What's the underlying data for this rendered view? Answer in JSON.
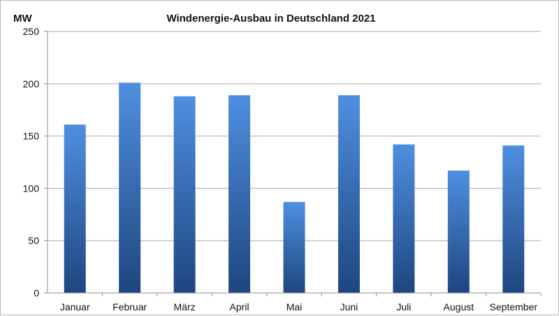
{
  "chart_data": {
    "type": "bar",
    "title": "Windenergie-Ausbau in Deutschland 2021",
    "ylabel": "MW",
    "xlabel": "",
    "categories": [
      "Januar",
      "Februar",
      "März",
      "April",
      "Mai",
      "Juni",
      "Juli",
      "August",
      "September"
    ],
    "values": [
      161,
      201,
      188,
      189,
      87,
      189,
      142,
      117,
      141
    ],
    "ylim": [
      0,
      250
    ],
    "yticks": [
      "0",
      "50",
      "100",
      "150",
      "200",
      "250"
    ],
    "grid": true,
    "legend": "none",
    "colors": {
      "bar_top": "#4f8fe0",
      "bar_bottom": "#1e467f",
      "grid": "#a9a9a9",
      "axis": "#8c8c8c"
    }
  }
}
